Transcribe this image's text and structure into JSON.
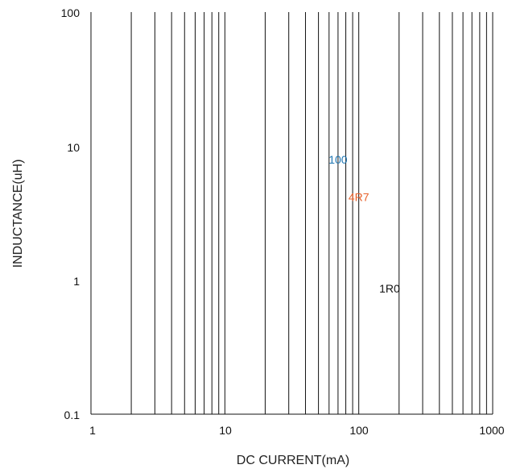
{
  "chart_data": {
    "type": "line",
    "xlabel": "DC CURRENT(mA)",
    "ylabel": "INDUCTANCE(uH)",
    "x_scale": "log",
    "y_scale": "log",
    "xlim": [
      1,
      1000
    ],
    "ylim": [
      0.1,
      100
    ],
    "x_ticks": [
      "1",
      "10",
      "100",
      "1000"
    ],
    "y_ticks": [
      "100",
      "10",
      "1",
      "0.1"
    ],
    "grid": "vertical",
    "series_labels": [
      {
        "text": "100",
        "color": "#1f77b4",
        "x": 70,
        "y": 7.8
      },
      {
        "text": "4R7",
        "color": "#e8622c",
        "x": 100,
        "y": 4.1
      },
      {
        "text": "1R0",
        "color": "#111111",
        "x": 170,
        "y": 0.85
      }
    ]
  }
}
